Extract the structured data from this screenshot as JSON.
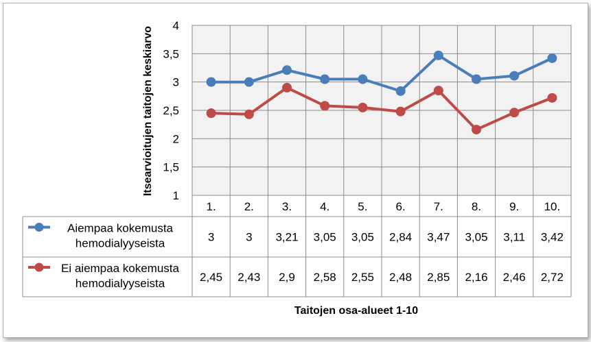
{
  "chart_data": {
    "type": "line",
    "categories": [
      "1.",
      "2.",
      "3.",
      "4.",
      "5.",
      "6.",
      "7.",
      "8.",
      "9.",
      "10."
    ],
    "series": [
      {
        "name_lines": [
          "Aiempaa kokemusta",
          "hemodialyyseista"
        ],
        "color": "#4a7ebb",
        "values": [
          3,
          3,
          3.21,
          3.05,
          3.05,
          2.84,
          3.47,
          3.05,
          3.11,
          3.42
        ],
        "labels": [
          "3",
          "3",
          "3,21",
          "3,05",
          "3,05",
          "2,84",
          "3,47",
          "3,05",
          "3,11",
          "3,42"
        ]
      },
      {
        "name_lines": [
          "Ei aiempaa kokemusta",
          "hemodialyyseista"
        ],
        "color": "#be4b48",
        "values": [
          2.45,
          2.43,
          2.9,
          2.58,
          2.55,
          2.48,
          2.85,
          2.16,
          2.46,
          2.72
        ],
        "labels": [
          "2,45",
          "2,43",
          "2,9",
          "2,58",
          "2,55",
          "2,48",
          "2,85",
          "2,16",
          "2,46",
          "2,72"
        ]
      }
    ],
    "ylabel": "Itsearvioitujen taitojen keskiarvo",
    "xlabel": "Taitojen osa-alueet 1-10",
    "ylim": [
      1,
      4
    ],
    "yticks": [
      1,
      1.5,
      2,
      2.5,
      3,
      3.5,
      4
    ],
    "ytick_labels": [
      "1",
      "1,5",
      "2",
      "2,5",
      "3",
      "3,5",
      "4"
    ],
    "grid": true,
    "plot_background": "#f2f2f2",
    "legend": "data-table"
  }
}
